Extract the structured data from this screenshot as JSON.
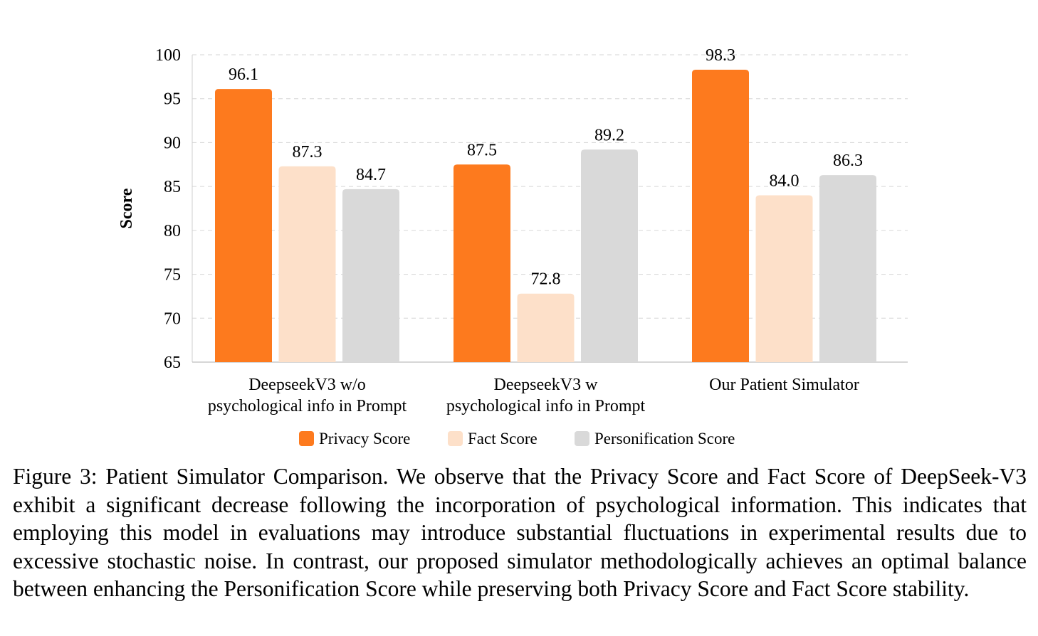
{
  "chart_data": {
    "type": "bar",
    "categories": [
      [
        "DeepseekV3 w/o",
        "psychological info in Prompt"
      ],
      [
        "DeepseekV3 w",
        "psychological info in Prompt"
      ],
      [
        "Our Patient Simulator"
      ]
    ],
    "series": [
      {
        "name": "Privacy Score",
        "values": [
          96.1,
          87.5,
          98.3
        ],
        "color": "#fd7a1e"
      },
      {
        "name": "Fact Score",
        "values": [
          87.3,
          72.8,
          84.0
        ],
        "color": "#fde0c9"
      },
      {
        "name": "Personification Score",
        "values": [
          84.7,
          89.2,
          86.3
        ],
        "color": "#d9d9d9"
      }
    ],
    "ylabel": "Score",
    "ylim": [
      65,
      100
    ],
    "yticks": [
      65,
      70,
      75,
      80,
      85,
      90,
      95,
      100
    ],
    "grid": true,
    "legend_position": "bottom-center",
    "data_labels": [
      "96.1",
      "87.3",
      "84.7",
      "87.5",
      "72.8",
      "89.2",
      "98.3",
      "84.0",
      "86.3"
    ]
  },
  "caption": "Figure 3: Patient Simulator Comparison.  We observe that the Privacy Score and Fact Score of DeepSeek-V3 exhibit a significant decrease following the incorporation of psychological information. This indicates that employing this model in evaluations may introduce substantial fluctuations in experimental results due to excessive stochastic noise.  In contrast, our proposed simulator methodologically achieves an optimal balance between enhancing the Personification Score while preserving both Privacy Score and Fact Score stability."
}
